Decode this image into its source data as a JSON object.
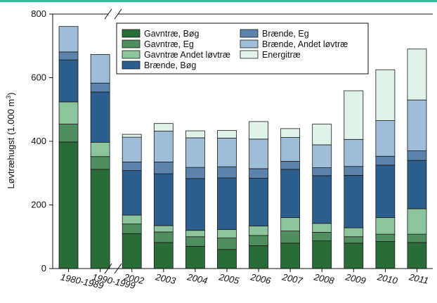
{
  "chart_data": {
    "type": "bar",
    "stacked": true,
    "ylabel_main": "Løvtræhugst (1.000 m",
    "ylabel_sup": "3",
    "ylabel_close": ")",
    "ylim": [
      0,
      800
    ],
    "yticks": [
      0,
      200,
      400,
      600,
      800
    ],
    "axis_break_on_x": true,
    "categories": [
      "1980-1989",
      "1990-1999",
      "2002",
      "2003",
      "2004",
      "2005",
      "2006",
      "2007",
      "2008",
      "2009",
      "2010",
      "2011"
    ],
    "series": [
      {
        "name": "Gavntræ, Bøg",
        "color": "#2a6b3a",
        "values": [
          398,
          312,
          110,
          82,
          70,
          60,
          72,
          80,
          87,
          80,
          85,
          82
        ]
      },
      {
        "name": "Gavntræ, Eg",
        "color": "#4f8f5f",
        "values": [
          56,
          40,
          30,
          33,
          30,
          36,
          32,
          38,
          27,
          20,
          23,
          26
        ]
      },
      {
        "name": "Gavntræ Andet løvtræ",
        "color": "#8cc49c",
        "values": [
          70,
          45,
          28,
          20,
          20,
          27,
          30,
          42,
          28,
          28,
          52,
          80
        ]
      },
      {
        "name": "Brænde, Bøg",
        "color": "#2d5f8e",
        "values": [
          132,
          158,
          140,
          163,
          163,
          162,
          150,
          152,
          150,
          165,
          165,
          152
        ]
      },
      {
        "name": "Brænde, Eg",
        "color": "#5b83ac",
        "values": [
          25,
          28,
          27,
          37,
          35,
          35,
          30,
          25,
          25,
          28,
          28,
          30
        ]
      },
      {
        "name": "Brænde, Andet løvtræ",
        "color": "#9fbdd8",
        "values": [
          80,
          90,
          78,
          97,
          93,
          90,
          93,
          75,
          72,
          85,
          112,
          160
        ]
      },
      {
        "name": "Energitræ",
        "color": "#dff3e8",
        "values": [
          0,
          0,
          9,
          24,
          22,
          24,
          55,
          28,
          65,
          153,
          160,
          160
        ]
      }
    ],
    "legend_placement": "top-center"
  }
}
